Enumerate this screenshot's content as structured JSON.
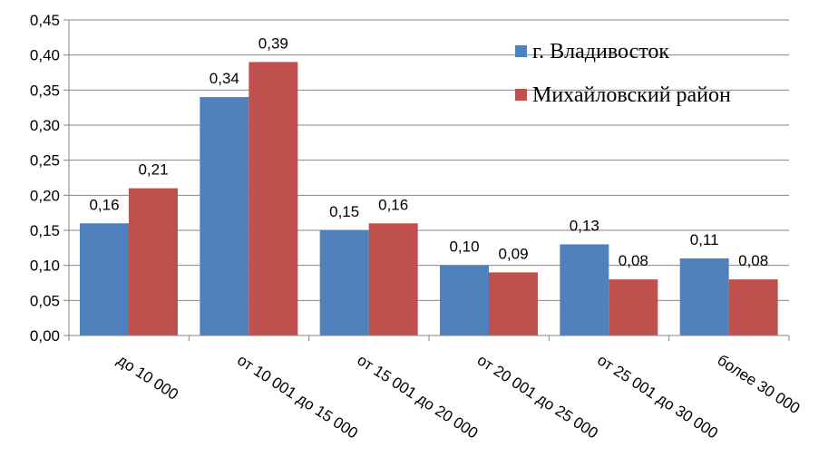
{
  "chart_data": {
    "type": "bar",
    "categories": [
      "до 10 000",
      "от 10 001 до 15 000",
      "от 15 001 до 20 000",
      "от 20 001 до 25 000",
      "от 25 001 до 30 000",
      "более 30 000"
    ],
    "series": [
      {
        "name": "г. Владивосток",
        "color": "#4F81BD",
        "values": [
          0.16,
          0.34,
          0.15,
          0.1,
          0.13,
          0.11
        ],
        "labels": [
          "0,16",
          "0,34",
          "0,15",
          "0,10",
          "0,13",
          "0,11"
        ]
      },
      {
        "name": "Михайловский район",
        "color": "#C0504D",
        "values": [
          0.21,
          0.39,
          0.16,
          0.09,
          0.08,
          0.08
        ],
        "labels": [
          "0,21",
          "0,39",
          "0,16",
          "0,09",
          "0,08",
          "0,08"
        ]
      }
    ],
    "y_ticks": [
      "0,00",
      "0,05",
      "0,10",
      "0,15",
      "0,20",
      "0,25",
      "0,30",
      "0,35",
      "0,40",
      "0,45"
    ],
    "ylim": [
      0,
      0.45
    ],
    "grid": true,
    "legend": "top-right",
    "title": "",
    "xlabel": "",
    "ylabel": ""
  }
}
